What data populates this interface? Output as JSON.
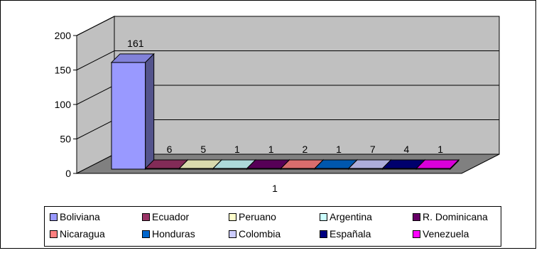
{
  "chart_data": {
    "type": "bar",
    "categories": [
      "1"
    ],
    "series": [
      {
        "name": "Boliviana",
        "values": [
          161
        ],
        "color": "#9999ff"
      },
      {
        "name": "Ecuador",
        "values": [
          6
        ],
        "color": "#993366"
      },
      {
        "name": "Peruano",
        "values": [
          5
        ],
        "color": "#ffffcc"
      },
      {
        "name": "Argentina",
        "values": [
          1
        ],
        "color": "#ccffff"
      },
      {
        "name": "R. Dominicana",
        "values": [
          1
        ],
        "color": "#660066"
      },
      {
        "name": "Nicaragua",
        "values": [
          2
        ],
        "color": "#ff8080"
      },
      {
        "name": "Honduras",
        "values": [
          1
        ],
        "color": "#0066cc"
      },
      {
        "name": "Colombia",
        "values": [
          7
        ],
        "color": "#ccccff"
      },
      {
        "name": "Españala",
        "values": [
          4
        ],
        "color": "#000080"
      },
      {
        "name": "Venezuela",
        "values": [
          1
        ],
        "color": "#ff00ff"
      }
    ],
    "yticks": [
      "0",
      "50",
      "100",
      "150",
      "200"
    ],
    "ylim": [
      0,
      200
    ],
    "grid": true,
    "three_d": true,
    "legend_position": "bottom",
    "wall_color": "#c0c0c0",
    "floor_color": "#808080"
  }
}
